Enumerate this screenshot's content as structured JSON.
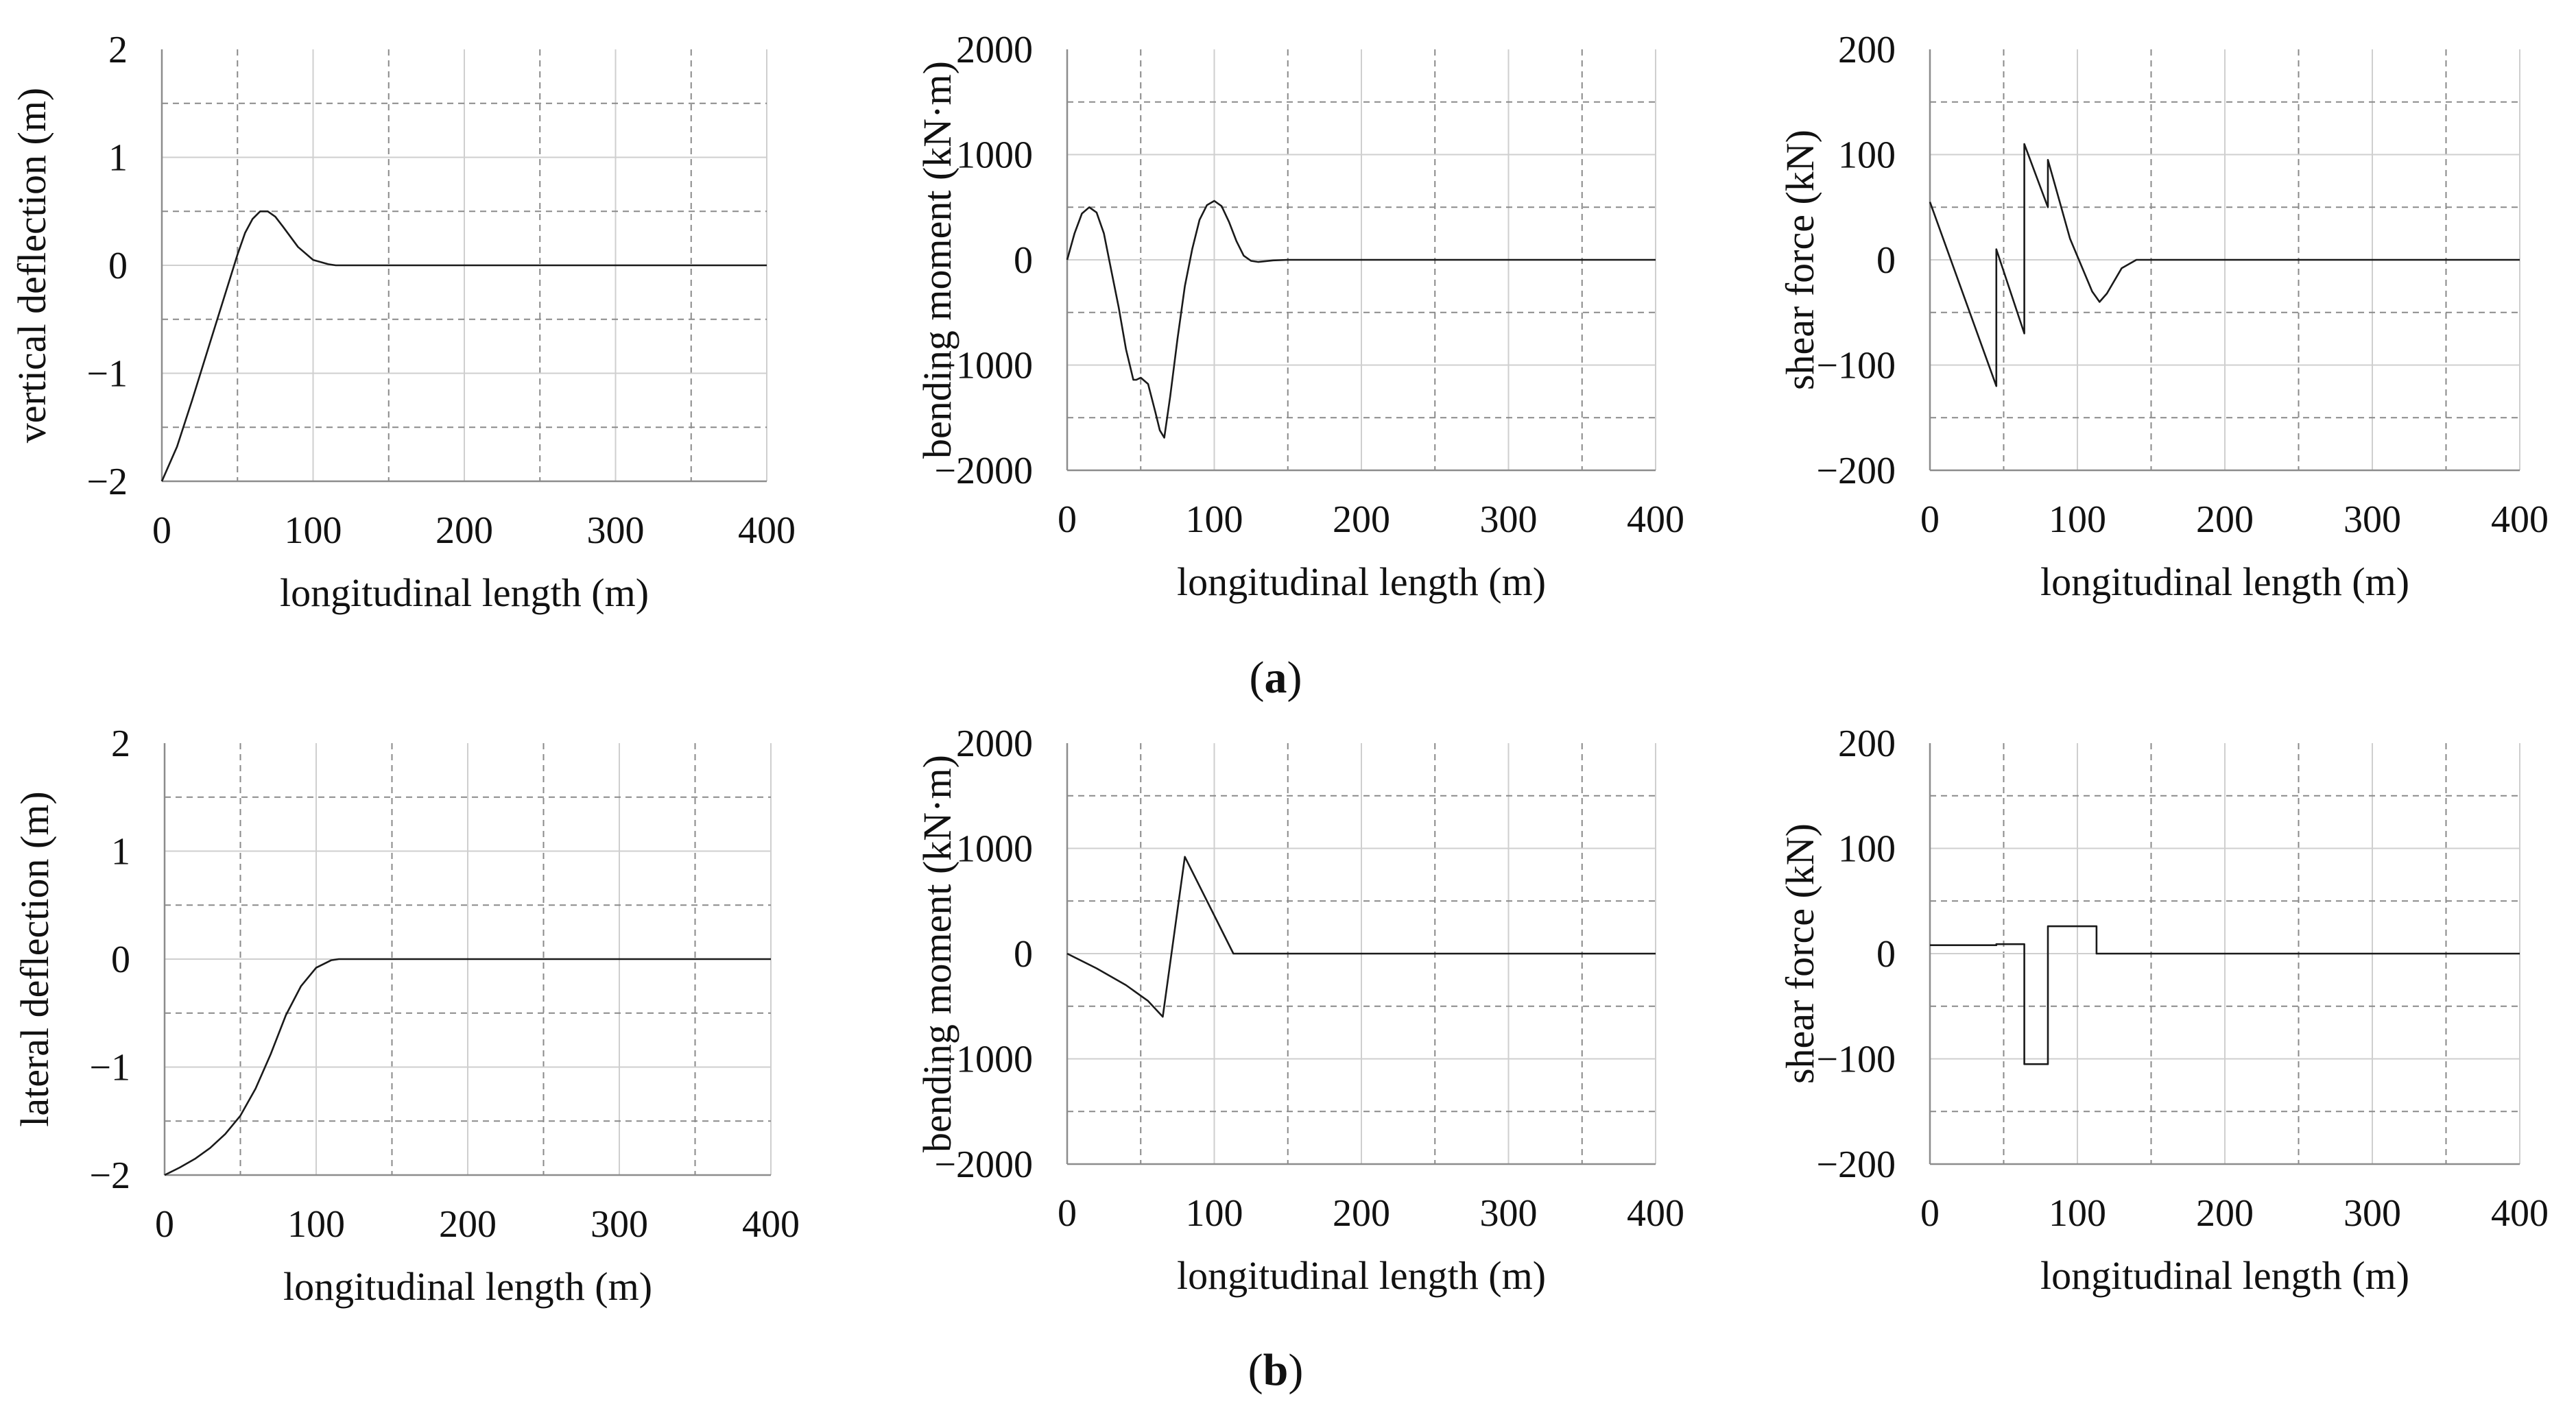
{
  "captions": [
    "a",
    "b"
  ],
  "chart_data": [
    {
      "type": "line",
      "xlabel": "longitudinal length (m)",
      "ylabel": "vertical deflection (m)",
      "xlim": [
        0,
        400
      ],
      "ylim": [
        -2,
        2
      ],
      "xticks": [
        0,
        100,
        200,
        300,
        400
      ],
      "yticks": [
        -2,
        -1,
        0,
        1,
        2
      ],
      "x": [
        0,
        10,
        20,
        30,
        40,
        50,
        55,
        60,
        65,
        70,
        75,
        80,
        90,
        100,
        110,
        115,
        120,
        200,
        300,
        400
      ],
      "y": [
        -2.0,
        -1.68,
        -1.25,
        -0.8,
        -0.35,
        0.1,
        0.3,
        0.43,
        0.5,
        0.5,
        0.45,
        0.36,
        0.17,
        0.05,
        0.01,
        0.0,
        0.0,
        0.0,
        0.0,
        0.0
      ]
    },
    {
      "type": "line",
      "xlabel": "longitudinal length (m)",
      "ylabel": "bending moment (kN·m)",
      "xlim": [
        0,
        400
      ],
      "ylim": [
        -2000,
        2000
      ],
      "xticks": [
        0,
        100,
        200,
        300,
        400
      ],
      "yticks": [
        -2000,
        -1000,
        0,
        1000,
        2000
      ],
      "x": [
        0,
        5,
        10,
        15,
        20,
        25,
        30,
        35,
        40,
        45,
        47,
        50,
        55,
        60,
        63,
        66,
        70,
        75,
        80,
        85,
        90,
        95,
        100,
        105,
        110,
        115,
        120,
        125,
        130,
        140,
        150,
        200,
        300,
        400
      ],
      "y": [
        0,
        250,
        440,
        500,
        450,
        250,
        -100,
        -450,
        -850,
        -1140,
        -1140,
        -1120,
        -1180,
        -1450,
        -1620,
        -1690,
        -1300,
        -750,
        -250,
        100,
        380,
        520,
        560,
        510,
        360,
        180,
        40,
        -10,
        -20,
        -5,
        0,
        0,
        0,
        0
      ]
    },
    {
      "type": "line",
      "xlabel": "longitudinal length (m)",
      "ylabel": "shear force (kN)",
      "xlim": [
        0,
        400
      ],
      "ylim": [
        -200,
        200
      ],
      "xticks": [
        0,
        100,
        200,
        300,
        400
      ],
      "yticks": [
        -200,
        -100,
        0,
        100,
        200
      ],
      "x": [
        0,
        45,
        45,
        64,
        64,
        80,
        80,
        85,
        95,
        110,
        115,
        120,
        130,
        140,
        150,
        200,
        300,
        400
      ],
      "y": [
        55,
        -120,
        10,
        -70,
        110,
        50,
        95,
        70,
        20,
        -30,
        -40,
        -32,
        -8,
        0,
        0,
        0,
        0,
        0
      ]
    },
    {
      "type": "line",
      "xlabel": "longitudinal length (m)",
      "ylabel": "lateral deflection (m)",
      "xlim": [
        0,
        400
      ],
      "ylim": [
        -2,
        2
      ],
      "xticks": [
        0,
        100,
        200,
        300,
        400
      ],
      "yticks": [
        -2,
        -1,
        0,
        1,
        2
      ],
      "x": [
        0,
        10,
        20,
        30,
        40,
        50,
        60,
        70,
        80,
        90,
        100,
        110,
        115,
        120,
        200,
        300,
        400
      ],
      "y": [
        -2.0,
        -1.93,
        -1.85,
        -1.75,
        -1.62,
        -1.45,
        -1.2,
        -0.88,
        -0.52,
        -0.25,
        -0.08,
        -0.01,
        0.0,
        0.0,
        0.0,
        0.0,
        0.0
      ]
    },
    {
      "type": "line",
      "xlabel": "longitudinal length (m)",
      "ylabel": "bending moment (kN·m)",
      "xlim": [
        0,
        400
      ],
      "ylim": [
        -2000,
        2000
      ],
      "xticks": [
        0,
        100,
        200,
        300,
        400
      ],
      "yticks": [
        -2000,
        -1000,
        0,
        1000,
        2000
      ],
      "x": [
        0,
        20,
        40,
        55,
        65,
        80,
        113,
        120,
        200,
        300,
        400
      ],
      "y": [
        0,
        -140,
        -300,
        -450,
        -600,
        920,
        0,
        0,
        0,
        0,
        0
      ]
    },
    {
      "type": "line",
      "xlabel": "longitudinal length (m)",
      "ylabel": "shear force (kN)",
      "xlim": [
        0,
        400
      ],
      "ylim": [
        -200,
        200
      ],
      "xticks": [
        0,
        100,
        200,
        300,
        400
      ],
      "yticks": [
        -200,
        -100,
        0,
        100,
        200
      ],
      "x": [
        0,
        45,
        45,
        64,
        64,
        80,
        80,
        113,
        113,
        200,
        300,
        400
      ],
      "y": [
        8,
        8,
        9,
        9,
        -105,
        -105,
        26,
        26,
        0,
        0,
        0,
        0
      ]
    }
  ]
}
